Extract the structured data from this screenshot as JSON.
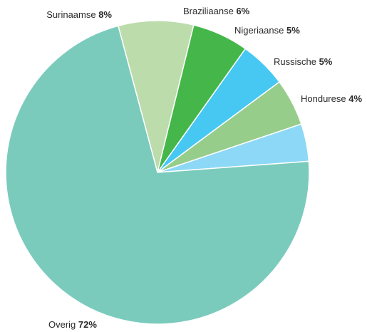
{
  "chart_data": {
    "type": "pie",
    "title": "",
    "slices": [
      {
        "label": "Surinaamse",
        "value": 8,
        "value_label": "8%",
        "color": "#bcdcab"
      },
      {
        "label": "Braziliaanse",
        "value": 6,
        "value_label": "6%",
        "color": "#45b649"
      },
      {
        "label": "Nigeriaanse",
        "value": 5,
        "value_label": "5%",
        "color": "#46c8f3"
      },
      {
        "label": "Russische",
        "value": 5,
        "value_label": "5%",
        "color": "#97cd8b"
      },
      {
        "label": "Hondurese",
        "value": 4,
        "value_label": "4%",
        "color": "#8dd8f6"
      },
      {
        "label": "Overig",
        "value": 72,
        "value_label": "72%",
        "color": "#7bcbbd"
      }
    ]
  }
}
